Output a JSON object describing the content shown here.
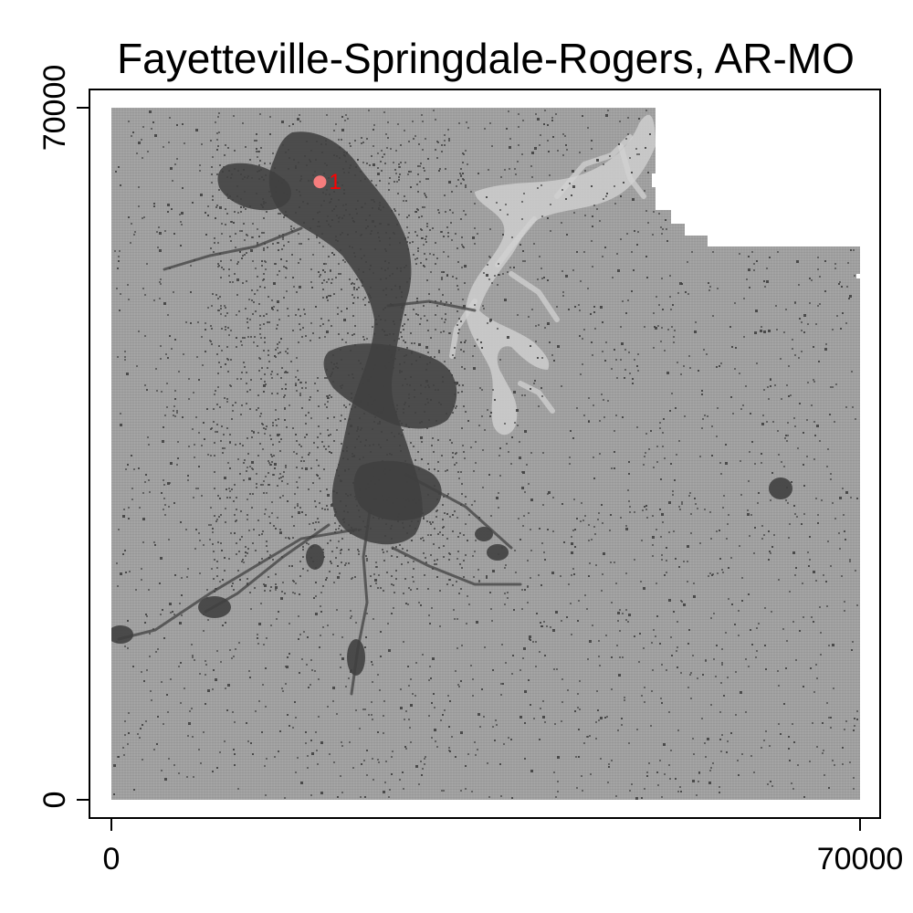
{
  "chart_data": {
    "type": "heatmap",
    "title": "Fayetteville-Springdale-Rogers, AR-MO",
    "xlim": [
      0,
      70000
    ],
    "ylim": [
      0,
      70000
    ],
    "x_ticks": [
      {
        "value": 0,
        "label": "0"
      },
      {
        "value": 70000,
        "label": "70000"
      }
    ],
    "y_ticks": [
      {
        "value": 0,
        "label": "0"
      },
      {
        "value": 70000,
        "label": "70000"
      }
    ],
    "grid": false,
    "colors": {
      "background_land": "#a0a0a0",
      "developed": "#404040",
      "water_light": "#d2d2d2",
      "no_data": "#ffffff",
      "marker": "#ff8080",
      "marker_label": "#ff0000"
    },
    "markers": [
      {
        "label": "1",
        "x": 19500,
        "y": 62500
      }
    ]
  }
}
